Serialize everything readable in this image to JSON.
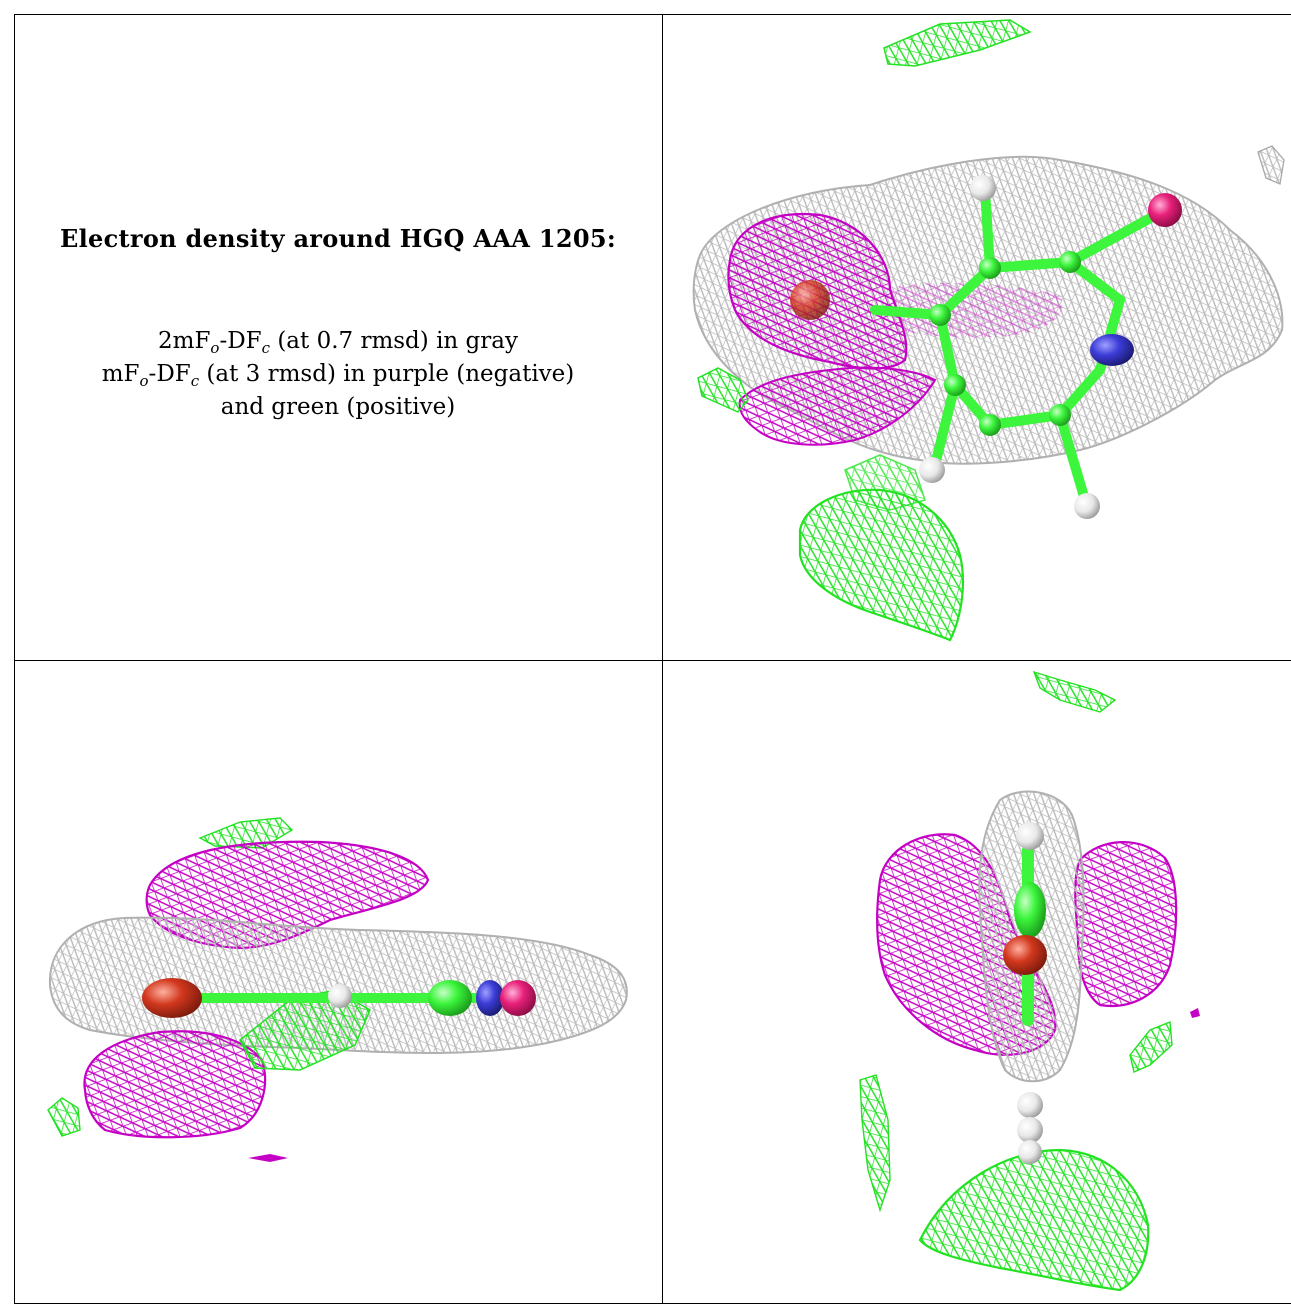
{
  "caption": {
    "title": "Electron density around HGQ AAA 1205:",
    "line1_prefix": "2mF",
    "line1_sub1": "o",
    "line1_mid": "-DF",
    "line1_sub2": "c",
    "line1_suffix": " (at 0.7 rmsd) in gray",
    "line2_prefix": "mF",
    "line2_sub1": "o",
    "line2_mid": "-DF",
    "line2_sub2": "c",
    "line2_suffix": " (at 3 rmsd) in purple (negative)",
    "line3": "and green (positive)"
  },
  "colors": {
    "gray_mesh": "#b9b9b9",
    "purple_mesh": "#c400c4",
    "green_mesh": "#22e222",
    "carbon": "#3cf53c",
    "oxygen_dark": "#c8301e",
    "oxygen_pink": "#e8207a",
    "nitrogen": "#3c3cd8",
    "hydrogen": "#f0f0f0",
    "grid_lines": "#000000"
  },
  "panels": [
    {
      "name": "top-right-view",
      "mesh_colors": [
        "gray",
        "purple",
        "green"
      ]
    },
    {
      "name": "bottom-left-view",
      "mesh_colors": [
        "gray",
        "purple",
        "green"
      ]
    },
    {
      "name": "bottom-right-view",
      "mesh_colors": [
        "gray",
        "purple",
        "green"
      ]
    }
  ]
}
